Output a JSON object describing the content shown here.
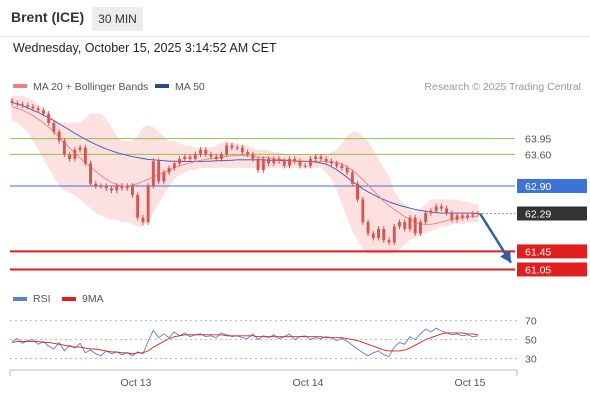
{
  "header": {
    "title": "Brent (ICE)",
    "timeframe": "30 MIN"
  },
  "datetime": "Wednesday, October 15, 2025 3:14:52 AM CET",
  "legend": {
    "ma20": "MA 20 + Bollinger Bands",
    "ma50": "MA 50",
    "rsi": "RSI",
    "ma9": "9MA"
  },
  "credit": "Research © 2025 Trading Central",
  "colors": {
    "candle": "#d9534f",
    "ma20": "#f08080",
    "bollinger_fill": "#fde0e0",
    "ma50": "#3f51b5",
    "resistance": "#8bc34a",
    "pivot": "#3b73d6",
    "support": "#e01e1e",
    "last_price": "#333333",
    "rsi": "#5b7fd4",
    "rsi_ma": "#e01e1e",
    "arrow": "#2f5ea8"
  },
  "chart_data": {
    "type": "candlestick",
    "x_ticks": [
      "Oct 13",
      "Oct 14",
      "Oct 15"
    ],
    "ylim": [
      60.75,
      64.85
    ],
    "price_levels": [
      {
        "label": "63.95",
        "value": 63.95,
        "kind": "resistance"
      },
      {
        "label": "63.60",
        "value": 63.6,
        "kind": "resistance"
      },
      {
        "label": "62.90",
        "value": 62.9,
        "kind": "pivot"
      },
      {
        "label": "62.29",
        "value": 62.29,
        "kind": "last"
      },
      {
        "label": "61.45",
        "value": 61.45,
        "kind": "support"
      },
      {
        "label": "61.05",
        "value": 61.05,
        "kind": "support"
      }
    ],
    "close": [
      64.74,
      64.71,
      64.69,
      64.66,
      64.62,
      64.58,
      64.5,
      64.3,
      64.1,
      63.9,
      63.6,
      63.5,
      63.7,
      63.75,
      63.4,
      62.95,
      62.9,
      62.9,
      62.85,
      62.8,
      62.9,
      62.85,
      62.9,
      62.7,
      62.2,
      62.1,
      62.9,
      63.45,
      63.0,
      63.2,
      63.3,
      63.4,
      63.5,
      63.55,
      63.5,
      63.6,
      63.7,
      63.6,
      63.55,
      63.5,
      63.6,
      63.8,
      63.75,
      63.75,
      63.65,
      63.6,
      63.5,
      63.25,
      63.5,
      63.4,
      63.5,
      63.45,
      63.35,
      63.5,
      63.45,
      63.35,
      63.35,
      63.5,
      63.55,
      63.5,
      63.45,
      63.4,
      63.35,
      63.3,
      63.2,
      62.95,
      62.6,
      62.1,
      61.85,
      61.75,
      61.95,
      61.7,
      61.65,
      62.0,
      62.1,
      61.95,
      62.2,
      61.85,
      62.1,
      62.3,
      62.35,
      62.45,
      62.4,
      62.3,
      62.15,
      62.25,
      62.2,
      62.25,
      62.28,
      62.29
    ],
    "bollinger_upper": [
      64.9,
      64.9,
      64.9,
      64.85,
      64.8,
      64.7,
      64.6,
      64.5,
      64.4,
      64.3,
      64.3,
      64.3,
      64.3,
      64.3,
      64.4,
      64.5,
      64.5,
      64.5,
      64.4,
      64.2,
      64.0,
      63.9,
      63.9,
      63.9,
      64.0,
      64.2,
      64.25,
      64.2,
      64.1,
      64.0,
      63.9,
      63.9,
      63.85,
      63.8,
      63.8,
      63.75,
      63.75,
      63.75,
      63.75,
      63.8,
      63.85,
      63.9,
      63.85,
      63.85,
      63.8,
      63.8,
      63.75,
      63.7,
      63.7,
      63.7,
      63.65,
      63.65,
      63.6,
      63.6,
      63.6,
      63.6,
      63.6,
      63.6,
      63.6,
      63.6,
      63.6,
      63.65,
      63.7,
      63.85,
      64.0,
      64.1,
      64.1,
      64.0,
      63.9,
      63.7,
      63.5,
      63.3,
      63.1,
      62.8,
      62.6,
      62.5,
      62.4,
      62.3,
      62.4,
      62.5,
      62.6,
      62.6,
      62.6,
      62.6,
      62.6,
      62.6,
      62.55,
      62.55,
      62.5,
      62.5
    ],
    "bollinger_lower": [
      64.35,
      64.3,
      64.2,
      64.1,
      63.9,
      63.7,
      63.5,
      63.3,
      63.1,
      62.9,
      62.8,
      62.75,
      62.7,
      62.6,
      62.5,
      62.4,
      62.3,
      62.25,
      62.2,
      62.15,
      62.15,
      62.1,
      62.1,
      62.05,
      62.0,
      62.0,
      62.1,
      62.3,
      62.5,
      62.7,
      62.9,
      63.05,
      63.15,
      63.2,
      63.25,
      63.25,
      63.3,
      63.3,
      63.3,
      63.3,
      63.3,
      63.3,
      63.3,
      63.3,
      63.3,
      63.3,
      63.3,
      63.3,
      63.3,
      63.3,
      63.3,
      63.3,
      63.3,
      63.3,
      63.3,
      63.3,
      63.3,
      63.3,
      63.3,
      63.3,
      63.2,
      63.05,
      62.8,
      62.5,
      62.2,
      61.9,
      61.7,
      61.5,
      61.4,
      61.4,
      61.4,
      61.4,
      61.4,
      61.45,
      61.5,
      61.6,
      61.7,
      61.75,
      61.8,
      61.85,
      61.9,
      61.95,
      62.0,
      62.0,
      62.05,
      62.05,
      62.05,
      62.1,
      62.1,
      62.1
    ],
    "ma20": [
      64.66,
      64.62,
      64.58,
      64.52,
      64.46,
      64.38,
      64.3,
      64.2,
      64.1,
      63.98,
      63.86,
      63.74,
      63.63,
      63.52,
      63.42,
      63.32,
      63.22,
      63.13,
      63.05,
      62.98,
      62.93,
      62.9,
      62.9,
      62.92,
      62.95,
      63.0,
      63.05,
      63.1,
      63.15,
      63.2,
      63.25,
      63.3,
      63.35,
      63.38,
      63.41,
      63.44,
      63.47,
      63.49,
      63.51,
      63.52,
      63.54,
      63.56,
      63.57,
      63.58,
      63.58,
      63.57,
      63.56,
      63.54,
      63.53,
      63.52,
      63.5,
      63.49,
      63.48,
      63.47,
      63.46,
      63.46,
      63.45,
      63.45,
      63.45,
      63.45,
      63.44,
      63.43,
      63.42,
      63.38,
      63.32,
      63.25,
      63.15,
      63.04,
      62.92,
      62.8,
      62.68,
      62.56,
      62.46,
      62.38,
      62.3,
      62.22,
      62.16,
      62.1,
      62.06,
      62.05,
      62.05,
      62.07,
      62.1,
      62.13,
      62.16,
      62.18,
      62.2,
      62.21,
      62.22,
      62.23
    ],
    "ma50": [
      64.75,
      64.72,
      64.68,
      64.63,
      64.58,
      64.53,
      64.47,
      64.41,
      64.35,
      64.28,
      64.21,
      64.14,
      64.07,
      64.0,
      63.94,
      63.88,
      63.82,
      63.77,
      63.72,
      63.68,
      63.64,
      63.61,
      63.58,
      63.55,
      63.53,
      63.51,
      63.49,
      63.48,
      63.47,
      63.46,
      63.45,
      63.45,
      63.45,
      63.44,
      63.44,
      63.44,
      63.44,
      63.45,
      63.45,
      63.46,
      63.46,
      63.47,
      63.47,
      63.48,
      63.48,
      63.48,
      63.48,
      63.48,
      63.48,
      63.47,
      63.47,
      63.47,
      63.46,
      63.46,
      63.45,
      63.45,
      63.44,
      63.44,
      63.43,
      63.41,
      63.38,
      63.33,
      63.26,
      63.18,
      63.09,
      63.0,
      62.92,
      62.84,
      62.77,
      62.71,
      62.65,
      62.6,
      62.55,
      62.51,
      62.47,
      62.44,
      62.41,
      62.38,
      62.36,
      62.34,
      62.32,
      62.31,
      62.3,
      62.3,
      62.3,
      62.3,
      62.3,
      62.3,
      62.3,
      62.29
    ],
    "forecast_arrow": {
      "from": 62.29,
      "to": 61.2
    },
    "rsi": {
      "ylim": [
        20,
        78
      ],
      "ticks": [
        70,
        50,
        30
      ],
      "values": [
        48,
        51,
        46,
        49,
        50,
        45,
        48,
        43,
        40,
        47,
        38,
        44,
        41,
        46,
        36,
        39,
        35,
        33,
        38,
        35,
        37,
        34,
        36,
        33,
        37,
        35,
        48,
        60,
        52,
        56,
        52,
        58,
        54,
        57,
        53,
        55,
        56,
        53,
        54,
        52,
        57,
        55,
        53,
        54,
        52,
        51,
        56,
        50,
        54,
        52,
        55,
        51,
        53,
        56,
        50,
        53,
        54,
        50,
        52,
        51,
        53,
        52,
        49,
        51,
        48,
        44,
        40,
        36,
        33,
        36,
        38,
        34,
        32,
        42,
        47,
        45,
        53,
        50,
        56,
        61,
        58,
        62,
        59,
        57,
        55,
        56,
        54,
        55,
        53,
        54
      ],
      "ma_values": [
        47,
        48,
        48,
        48,
        48,
        48,
        47,
        47,
        46,
        45,
        44,
        43,
        42,
        42,
        41,
        40,
        40,
        39,
        38,
        37,
        37,
        36,
        36,
        35,
        36,
        36,
        38,
        42,
        45,
        48,
        51,
        53,
        54,
        55,
        55,
        55,
        55,
        55,
        55,
        55,
        55,
        54,
        54,
        54,
        54,
        54,
        54,
        53,
        53,
        53,
        53,
        53,
        53,
        53,
        53,
        53,
        53,
        53,
        53,
        53,
        52,
        52,
        52,
        52,
        51,
        50,
        49,
        47,
        45,
        43,
        41,
        39,
        38,
        38,
        38,
        39,
        41,
        44,
        47,
        50,
        52,
        54,
        56,
        57,
        57,
        57,
        57,
        56,
        56,
        55
      ]
    }
  }
}
